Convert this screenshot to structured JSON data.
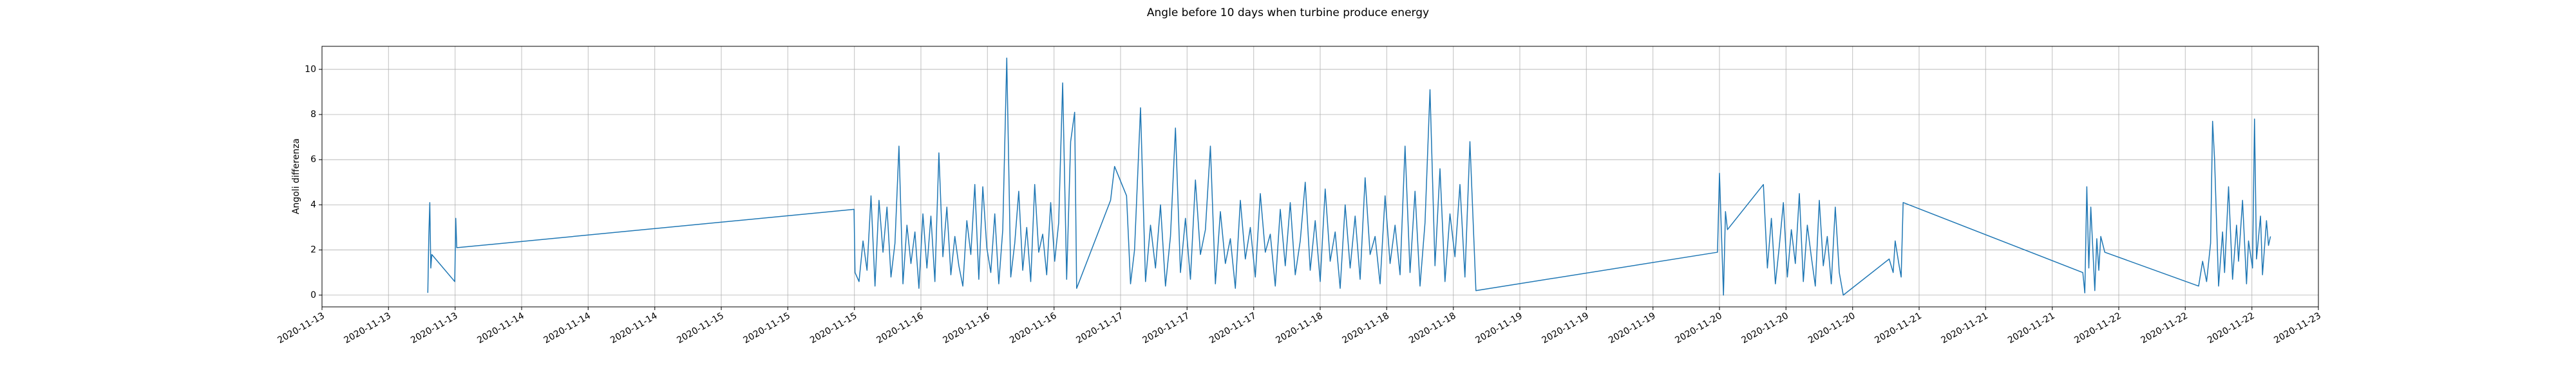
{
  "chart_data": {
    "type": "line",
    "title": "Angle before 10 days when turbine produce energy",
    "y_label": "Angoli differenza",
    "color": "#1f77b4",
    "grid": true,
    "x": [
      13.53,
      13.535,
      13.54,
      13.545,
      13.55,
      13.665,
      13.67,
      13.675,
      15.665,
      15.67,
      15.69,
      15.71,
      15.73,
      15.75,
      15.77,
      15.79,
      15.81,
      15.83,
      15.85,
      15.87,
      15.89,
      15.91,
      15.93,
      15.95,
      15.97,
      15.99,
      16.01,
      16.03,
      16.05,
      16.07,
      16.09,
      16.11,
      16.13,
      16.15,
      16.17,
      16.19,
      16.21,
      16.23,
      16.25,
      16.27,
      16.29,
      16.31,
      16.33,
      16.35,
      16.37,
      16.39,
      16.41,
      16.43,
      16.45,
      16.47,
      16.49,
      16.51,
      16.53,
      16.55,
      16.57,
      16.59,
      16.61,
      16.63,
      16.65,
      16.67,
      16.69,
      16.71,
      16.73,
      16.75,
      16.77,
      16.78,
      16.95,
      16.97,
      17.03,
      17.05,
      17.07,
      17.1,
      17.125,
      17.15,
      17.175,
      17.2,
      17.225,
      17.25,
      17.275,
      17.3,
      17.325,
      17.35,
      17.375,
      17.4,
      17.425,
      17.45,
      17.475,
      17.5,
      17.525,
      17.55,
      17.575,
      17.6,
      17.625,
      17.65,
      17.675,
      17.7,
      17.725,
      17.75,
      17.775,
      17.8,
      17.825,
      17.85,
      17.875,
      17.9,
      17.925,
      17.95,
      17.975,
      18.0,
      18.025,
      18.05,
      18.075,
      18.1,
      18.125,
      18.15,
      18.175,
      18.2,
      18.225,
      18.25,
      18.275,
      18.3,
      18.325,
      18.35,
      18.375,
      18.4,
      18.425,
      18.45,
      18.475,
      18.5,
      18.525,
      18.55,
      18.575,
      18.6,
      18.625,
      18.65,
      18.675,
      18.7,
      18.725,
      18.75,
      18.78,
      19.99,
      20.0,
      20.02,
      20.03,
      20.04,
      20.22,
      20.24,
      20.26,
      20.28,
      20.3,
      20.32,
      20.34,
      20.36,
      20.38,
      20.4,
      20.42,
      20.44,
      20.46,
      20.48,
      20.5,
      20.52,
      20.54,
      20.56,
      20.58,
      20.6,
      20.62,
      20.85,
      20.87,
      20.88,
      20.9,
      20.91,
      20.92,
      21.82,
      21.83,
      21.84,
      21.85,
      21.86,
      21.88,
      21.89,
      21.9,
      21.91,
      21.93,
      22.4,
      22.42,
      22.44,
      22.46,
      22.47,
      22.48,
      22.5,
      22.52,
      22.53,
      22.55,
      22.57,
      22.59,
      22.6,
      22.62,
      22.64,
      22.65,
      22.67,
      22.68,
      22.69,
      22.71,
      22.72,
      22.74,
      22.75,
      22.76
    ],
    "values": [
      0.1,
      2.6,
      4.1,
      1.2,
      1.8,
      0.6,
      3.4,
      2.1,
      3.8,
      1.0,
      0.6,
      2.4,
      1.1,
      4.4,
      0.4,
      4.2,
      1.9,
      3.9,
      0.8,
      2.3,
      6.6,
      0.5,
      3.1,
      1.4,
      2.8,
      0.3,
      3.6,
      1.2,
      3.5,
      0.6,
      6.3,
      1.7,
      3.9,
      0.9,
      2.6,
      1.3,
      0.4,
      3.3,
      1.8,
      4.9,
      0.7,
      4.8,
      2.1,
      1.0,
      3.6,
      0.5,
      2.9,
      10.5,
      0.8,
      2.3,
      4.6,
      1.1,
      3.0,
      0.6,
      4.9,
      1.9,
      2.7,
      0.9,
      4.1,
      1.5,
      3.2,
      9.4,
      0.7,
      6.8,
      8.1,
      0.3,
      4.2,
      5.7,
      4.4,
      0.5,
      2.0,
      8.3,
      0.6,
      3.1,
      1.2,
      4.0,
      0.4,
      2.6,
      7.4,
      1.0,
      3.4,
      0.7,
      5.1,
      1.8,
      2.9,
      6.6,
      0.5,
      3.7,
      1.4,
      2.5,
      0.3,
      4.2,
      1.6,
      3.0,
      0.8,
      4.5,
      1.9,
      2.7,
      0.4,
      3.8,
      1.3,
      4.1,
      0.9,
      2.4,
      5.0,
      1.1,
      3.3,
      0.6,
      4.7,
      1.5,
      2.8,
      0.3,
      4.0,
      1.2,
      3.5,
      0.7,
      5.2,
      1.8,
      2.6,
      0.5,
      4.4,
      1.4,
      3.1,
      0.9,
      6.6,
      1.0,
      4.6,
      0.4,
      3.2,
      9.1,
      1.3,
      5.6,
      0.6,
      3.6,
      1.7,
      4.9,
      0.8,
      6.8,
      0.2,
      1.9,
      5.4,
      0.0,
      3.7,
      2.9,
      4.9,
      1.2,
      3.4,
      0.5,
      2.2,
      4.1,
      0.8,
      2.9,
      1.4,
      4.5,
      0.6,
      3.1,
      1.7,
      0.4,
      4.2,
      1.3,
      2.6,
      0.5,
      3.9,
      1.0,
      0.0,
      1.6,
      1.0,
      2.4,
      1.3,
      0.8,
      4.1,
      1.0,
      0.1,
      4.8,
      1.2,
      3.9,
      0.2,
      2.5,
      1.1,
      2.6,
      1.9,
      0.4,
      1.5,
      0.6,
      2.3,
      7.7,
      6.0,
      0.4,
      2.8,
      1.0,
      4.8,
      0.7,
      3.1,
      1.5,
      4.2,
      0.5,
      2.4,
      1.2,
      7.8,
      1.6,
      3.5,
      0.9,
      3.3,
      2.2,
      2.6
    ],
    "xlim": [
      13,
      23
    ],
    "xticks": [
      {
        "value": 13,
        "label": "2020-11-13"
      },
      {
        "value": 13.333,
        "label": "2020-11-13"
      },
      {
        "value": 13.667,
        "label": "2020-11-13"
      },
      {
        "value": 14,
        "label": "2020-11-14"
      },
      {
        "value": 14.333,
        "label": "2020-11-14"
      },
      {
        "value": 14.667,
        "label": "2020-11-14"
      },
      {
        "value": 15,
        "label": "2020-11-15"
      },
      {
        "value": 15.333,
        "label": "2020-11-15"
      },
      {
        "value": 15.667,
        "label": "2020-11-15"
      },
      {
        "value": 16,
        "label": "2020-11-16"
      },
      {
        "value": 16.333,
        "label": "2020-11-16"
      },
      {
        "value": 16.667,
        "label": "2020-11-16"
      },
      {
        "value": 17,
        "label": "2020-11-17"
      },
      {
        "value": 17.333,
        "label": "2020-11-17"
      },
      {
        "value": 17.667,
        "label": "2020-11-17"
      },
      {
        "value": 18,
        "label": "2020-11-18"
      },
      {
        "value": 18.333,
        "label": "2020-11-18"
      },
      {
        "value": 18.667,
        "label": "2020-11-18"
      },
      {
        "value": 19,
        "label": "2020-11-19"
      },
      {
        "value": 19.333,
        "label": "2020-11-19"
      },
      {
        "value": 19.667,
        "label": "2020-11-19"
      },
      {
        "value": 20,
        "label": "2020-11-20"
      },
      {
        "value": 20.333,
        "label": "2020-11-20"
      },
      {
        "value": 20.667,
        "label": "2020-11-20"
      },
      {
        "value": 21,
        "label": "2020-11-21"
      },
      {
        "value": 21.333,
        "label": "2020-11-21"
      },
      {
        "value": 21.667,
        "label": "2020-11-21"
      },
      {
        "value": 22,
        "label": "2020-11-22"
      },
      {
        "value": 22.333,
        "label": "2020-11-22"
      },
      {
        "value": 22.667,
        "label": "2020-11-22"
      },
      {
        "value": 23,
        "label": "2020-11-23"
      }
    ],
    "ylim": [
      -0.52,
      11.02
    ],
    "yticks": [
      0,
      2,
      4,
      6,
      8,
      10
    ]
  }
}
